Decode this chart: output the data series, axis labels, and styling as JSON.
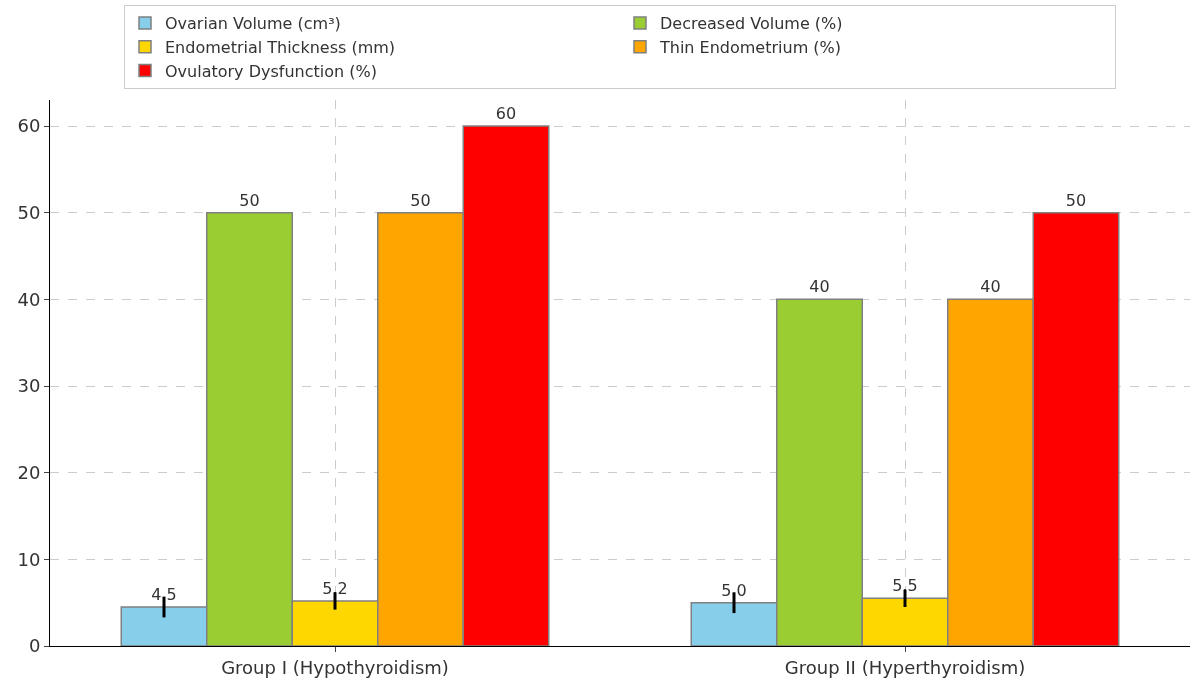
{
  "chart_data": {
    "type": "bar",
    "categories": [
      "Group I (Hypothyroidism)",
      "Group II (Hyperthyroidism)"
    ],
    "series": [
      {
        "name": "Ovarian Volume (cm³)",
        "color": "#87ceeb",
        "values": [
          4.5,
          5.0
        ],
        "value_labels": [
          "4.5",
          "5.0"
        ],
        "errors": [
          1.2,
          1.2
        ]
      },
      {
        "name": "Decreased Volume (%)",
        "color": "#9acd32",
        "values": [
          50,
          40
        ],
        "value_labels": [
          "50",
          "40"
        ]
      },
      {
        "name": "Endometrial Thickness (mm)",
        "color": "#ffd700",
        "values": [
          5.2,
          5.5
        ],
        "value_labels": [
          "5.2",
          "5.5"
        ],
        "errors": [
          1.0,
          1.0
        ]
      },
      {
        "name": "Thin Endometrium (%)",
        "color": "#ffa500",
        "values": [
          50,
          40
        ],
        "value_labels": [
          "50",
          "40"
        ]
      },
      {
        "name": "Ovulatory Dysfunction (%)",
        "color": "#ff0000",
        "values": [
          60,
          50
        ],
        "value_labels": [
          "60",
          "50"
        ]
      }
    ],
    "ylim": [
      0,
      63
    ],
    "yticks": [
      0,
      10,
      20,
      30,
      40,
      50,
      60
    ],
    "grid": true,
    "legend": "top"
  }
}
